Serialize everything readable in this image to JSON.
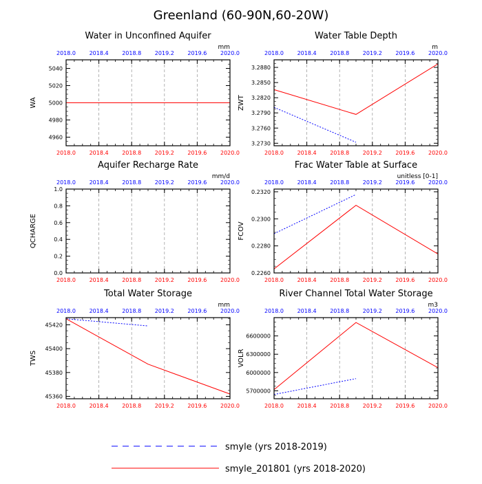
{
  "page": {
    "title": "Greenland (60-90N,60-20W)"
  },
  "colors": {
    "blue": "#0000ff",
    "red": "#ff0000",
    "grid": "#a0a0a0"
  },
  "legend": {
    "items": [
      {
        "label": "smyle (yrs 2018-2019)",
        "color": "#0000ff",
        "style": "dashed"
      },
      {
        "label": "smyle_201801 (yrs 2018-2020)",
        "color": "#ff0000",
        "style": "solid"
      }
    ]
  },
  "chart_data": [
    {
      "type": "line",
      "title": "Water in Unconfined Aquifer",
      "ylabel": "WA",
      "units": "mm",
      "xlim": [
        2018.0,
        2020.0
      ],
      "ylim": [
        4950,
        5050
      ],
      "xticks": [
        "2018.0",
        "2018.4",
        "2018.8",
        "2019.2",
        "2019.6",
        "2020.0"
      ],
      "yticks": [
        4960,
        4980,
        5000,
        5020,
        5040
      ],
      "ytick_labels": [
        "4960",
        "4980",
        "5000",
        "5020",
        "5040"
      ],
      "series": [
        {
          "name": "smyle (yrs 2018-2019)",
          "x": [
            2018.0,
            2019.0
          ],
          "y": [
            5000,
            5000
          ]
        },
        {
          "name": "smyle_201801 (yrs 2018-2020)",
          "x": [
            2018.0,
            2019.0,
            2020.0
          ],
          "y": [
            5000,
            5000,
            5000
          ]
        }
      ]
    },
    {
      "type": "line",
      "title": "Water Table Depth",
      "ylabel": "ZWT",
      "units": "m",
      "xlim": [
        2018.0,
        2020.0
      ],
      "ylim": [
        3.2725,
        3.2895
      ],
      "xticks": [
        "2018.0",
        "2018.4",
        "2018.8",
        "2019.2",
        "2019.6",
        "2020.0"
      ],
      "yticks": [
        3.273,
        3.276,
        3.279,
        3.282,
        3.285,
        3.288
      ],
      "ytick_labels": [
        "3.2730",
        "3.2760",
        "3.2790",
        "3.2820",
        "3.2850",
        "3.2880"
      ],
      "series": [
        {
          "name": "smyle (yrs 2018-2019)",
          "x": [
            2018.0,
            2019.0
          ],
          "y": [
            3.2801,
            3.2732
          ]
        },
        {
          "name": "smyle_201801 (yrs 2018-2020)",
          "x": [
            2018.0,
            2019.0,
            2020.0
          ],
          "y": [
            3.2836,
            3.2787,
            3.2887
          ]
        }
      ]
    },
    {
      "type": "line",
      "title": "Aquifer Recharge Rate",
      "ylabel": "QCHARGE",
      "units": "mm/d",
      "xlim": [
        2018.0,
        2020.0
      ],
      "ylim": [
        0.0,
        1.0
      ],
      "xticks": [
        "2018.0",
        "2018.4",
        "2018.8",
        "2019.2",
        "2019.6",
        "2020.0"
      ],
      "yticks": [
        0.0,
        0.2,
        0.4,
        0.6,
        0.8,
        1.0
      ],
      "ytick_labels": [
        "0.0",
        "0.2",
        "0.4",
        "0.6",
        "0.8",
        "1.0"
      ],
      "series": []
    },
    {
      "type": "line",
      "title": "Frac Water Table at Surface",
      "ylabel": "FCOV",
      "units": "unitless [0-1]",
      "xlim": [
        2018.0,
        2020.0
      ],
      "ylim": [
        0.226,
        0.2322
      ],
      "xticks": [
        "2018.0",
        "2018.4",
        "2018.8",
        "2019.2",
        "2019.6",
        "2020.0"
      ],
      "yticks": [
        0.226,
        0.228,
        0.23,
        0.232
      ],
      "ytick_labels": [
        "0.2260",
        "0.2280",
        "0.2300",
        "0.2320"
      ],
      "series": [
        {
          "name": "smyle (yrs 2018-2019)",
          "x": [
            2018.0,
            2019.0
          ],
          "y": [
            0.2289,
            0.2318
          ]
        },
        {
          "name": "smyle_201801 (yrs 2018-2020)",
          "x": [
            2018.0,
            2019.0,
            2020.0
          ],
          "y": [
            0.2263,
            0.231,
            0.2274
          ]
        }
      ]
    },
    {
      "type": "line",
      "title": "Total Water Storage",
      "ylabel": "TWS",
      "units": "mm",
      "xlim": [
        2018.0,
        2020.0
      ],
      "ylim": [
        45358,
        45426
      ],
      "xticks": [
        "2018.0",
        "2018.4",
        "2018.8",
        "2019.2",
        "2019.6",
        "2020.0"
      ],
      "yticks": [
        45360,
        45380,
        45400,
        45420
      ],
      "ytick_labels": [
        "45360",
        "45380",
        "45400",
        "45420"
      ],
      "series": [
        {
          "name": "smyle (yrs 2018-2019)",
          "x": [
            2018.0,
            2019.0
          ],
          "y": [
            45425,
            45419
          ]
        },
        {
          "name": "smyle_201801 (yrs 2018-2020)",
          "x": [
            2018.0,
            2019.0,
            2020.0
          ],
          "y": [
            45425,
            45387,
            45362
          ]
        }
      ]
    },
    {
      "type": "line",
      "title": "River Channel Total Water Storage",
      "ylabel": "VOLR",
      "units": "m3",
      "xlim": [
        2018.0,
        2020.0
      ],
      "ylim": [
        5570000,
        6900000
      ],
      "xticks": [
        "2018.0",
        "2018.4",
        "2018.8",
        "2019.2",
        "2019.6",
        "2020.0"
      ],
      "yticks": [
        5700000,
        6000000,
        6300000,
        6600000
      ],
      "ytick_labels": [
        "5700000",
        "6000000",
        "6300000",
        "6600000"
      ],
      "series": [
        {
          "name": "smyle (yrs 2018-2019)",
          "x": [
            2018.0,
            2019.0
          ],
          "y": [
            5640000,
            5900000
          ]
        },
        {
          "name": "smyle_201801 (yrs 2018-2020)",
          "x": [
            2018.0,
            2019.0,
            2020.0
          ],
          "y": [
            5720000,
            6820000,
            6080000
          ]
        }
      ]
    }
  ]
}
